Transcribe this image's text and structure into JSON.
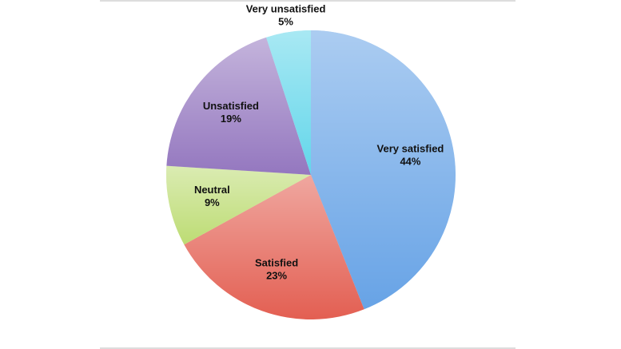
{
  "chart_data": {
    "type": "pie",
    "categories": [
      "Very satisfied",
      "Satisfied",
      "Neutral",
      "Unsatisfied",
      "Very unsatisfied"
    ],
    "values": [
      44,
      23,
      9,
      19,
      5
    ],
    "value_labels": [
      "44%",
      "23%",
      "9%",
      "19%",
      "5%"
    ],
    "colors": [
      "#67a3e6",
      "#e35f52",
      "#bddc74",
      "#9477bf",
      "#62d6ea"
    ]
  }
}
